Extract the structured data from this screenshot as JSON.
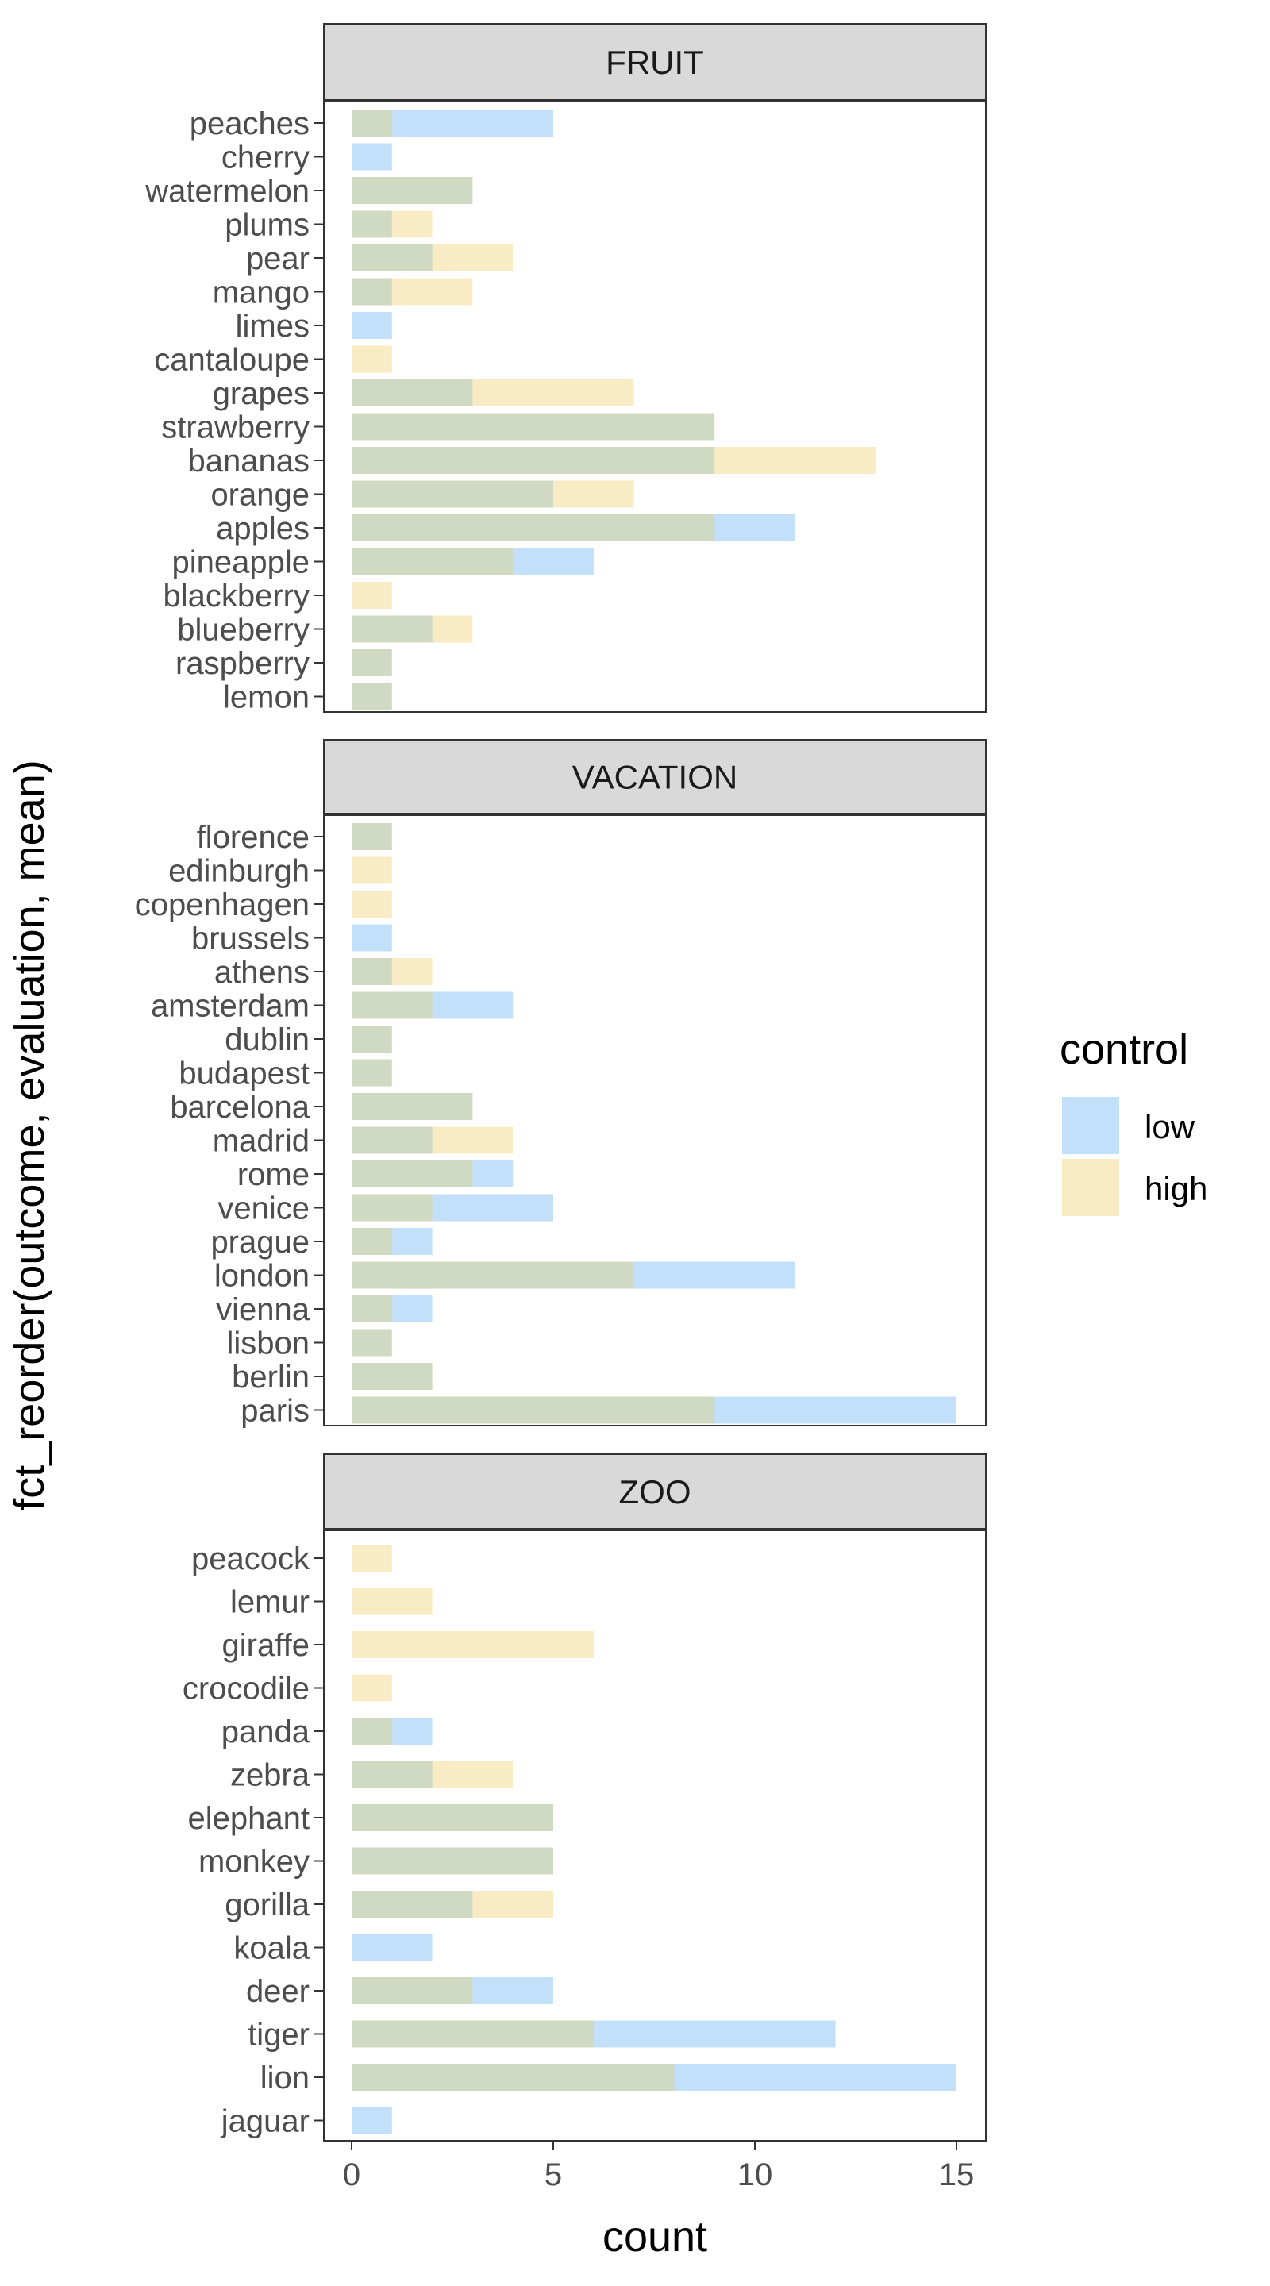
{
  "chart_data": {
    "type": "bar",
    "orientation": "horizontal",
    "xlabel": "count",
    "ylabel": "fct_reorder(outcome, evaluation, mean)",
    "xlim": [
      0,
      15
    ],
    "x_ticks": [
      0,
      5,
      10,
      15
    ],
    "grid": false,
    "overlay": "identity",
    "legend": {
      "title": "control",
      "position": "right",
      "entries": [
        {
          "name": "low",
          "color": "#c2e0fa"
        },
        {
          "name": "high",
          "color": "#f9ecc4"
        }
      ]
    },
    "overlap_color": "#d0dac2",
    "facets": [
      {
        "label": "FRUIT",
        "categories": [
          "peaches",
          "cherry",
          "watermelon",
          "plums",
          "pear",
          "mango",
          "limes",
          "cantaloupe",
          "grapes",
          "strawberry",
          "bananas",
          "orange",
          "apples",
          "pineapple",
          "blackberry",
          "blueberry",
          "raspberry",
          "lemon"
        ],
        "series": [
          {
            "name": "low",
            "values": [
              5,
              1,
              3,
              1,
              2,
              1,
              1,
              0,
              3,
              9,
              9,
              5,
              11,
              6,
              0,
              2,
              1,
              1
            ]
          },
          {
            "name": "high",
            "values": [
              1,
              0,
              3,
              2,
              4,
              3,
              0,
              1,
              7,
              9,
              13,
              7,
              9,
              4,
              1,
              3,
              1,
              1
            ]
          }
        ]
      },
      {
        "label": "VACATION",
        "categories": [
          "florence",
          "edinburgh",
          "copenhagen",
          "brussels",
          "athens",
          "amsterdam",
          "dublin",
          "budapest",
          "barcelona",
          "madrid",
          "rome",
          "venice",
          "prague",
          "london",
          "vienna",
          "lisbon",
          "berlin",
          "paris"
        ],
        "series": [
          {
            "name": "low",
            "values": [
              1,
              0,
              0,
              1,
              1,
              4,
              1,
              1,
              3,
              2,
              4,
              5,
              2,
              11,
              2,
              1,
              2,
              15
            ]
          },
          {
            "name": "high",
            "values": [
              1,
              1,
              1,
              0,
              2,
              2,
              1,
              1,
              3,
              4,
              3,
              2,
              1,
              7,
              1,
              1,
              2,
              9
            ]
          }
        ]
      },
      {
        "label": "ZOO",
        "categories": [
          "peacock",
          "lemur",
          "giraffe",
          "crocodile",
          "panda",
          "zebra",
          "elephant",
          "monkey",
          "gorilla",
          "koala",
          "deer",
          "tiger",
          "lion",
          "jaguar"
        ],
        "series": [
          {
            "name": "low",
            "values": [
              0,
              0,
              0,
              0,
              2,
              2,
              5,
              5,
              3,
              2,
              5,
              12,
              15,
              1
            ]
          },
          {
            "name": "high",
            "values": [
              1,
              2,
              6,
              1,
              1,
              4,
              5,
              5,
              5,
              0,
              3,
              6,
              8,
              0
            ]
          }
        ]
      }
    ]
  }
}
